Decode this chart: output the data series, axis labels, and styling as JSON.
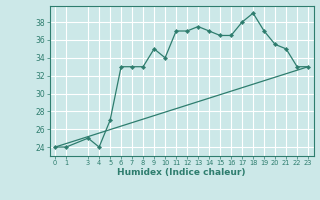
{
  "xlabel": "Humidex (Indice chaleur)",
  "bg_color": "#cce8e8",
  "line_color": "#2e7d6e",
  "grid_color": "#ffffff",
  "xlim": [
    -0.5,
    23.5
  ],
  "ylim": [
    23.0,
    39.8
  ],
  "yticks": [
    24,
    26,
    28,
    30,
    32,
    34,
    36,
    38
  ],
  "xticks": [
    0,
    1,
    3,
    4,
    5,
    6,
    7,
    8,
    9,
    10,
    11,
    12,
    13,
    14,
    15,
    16,
    17,
    18,
    19,
    20,
    21,
    22,
    23
  ],
  "series1_x": [
    0,
    1,
    3,
    4,
    5,
    6,
    7,
    8,
    9,
    10,
    11,
    12,
    13,
    14,
    15,
    16,
    17,
    18,
    19,
    20,
    21,
    22,
    23
  ],
  "series1_y": [
    24,
    24,
    25,
    24,
    27,
    33,
    33,
    33,
    35,
    34,
    37,
    37,
    37.5,
    37,
    36.5,
    36.5,
    38,
    39,
    37,
    35.5,
    35,
    33,
    33
  ],
  "series2_x": [
    0,
    23
  ],
  "series2_y": [
    24,
    33
  ]
}
